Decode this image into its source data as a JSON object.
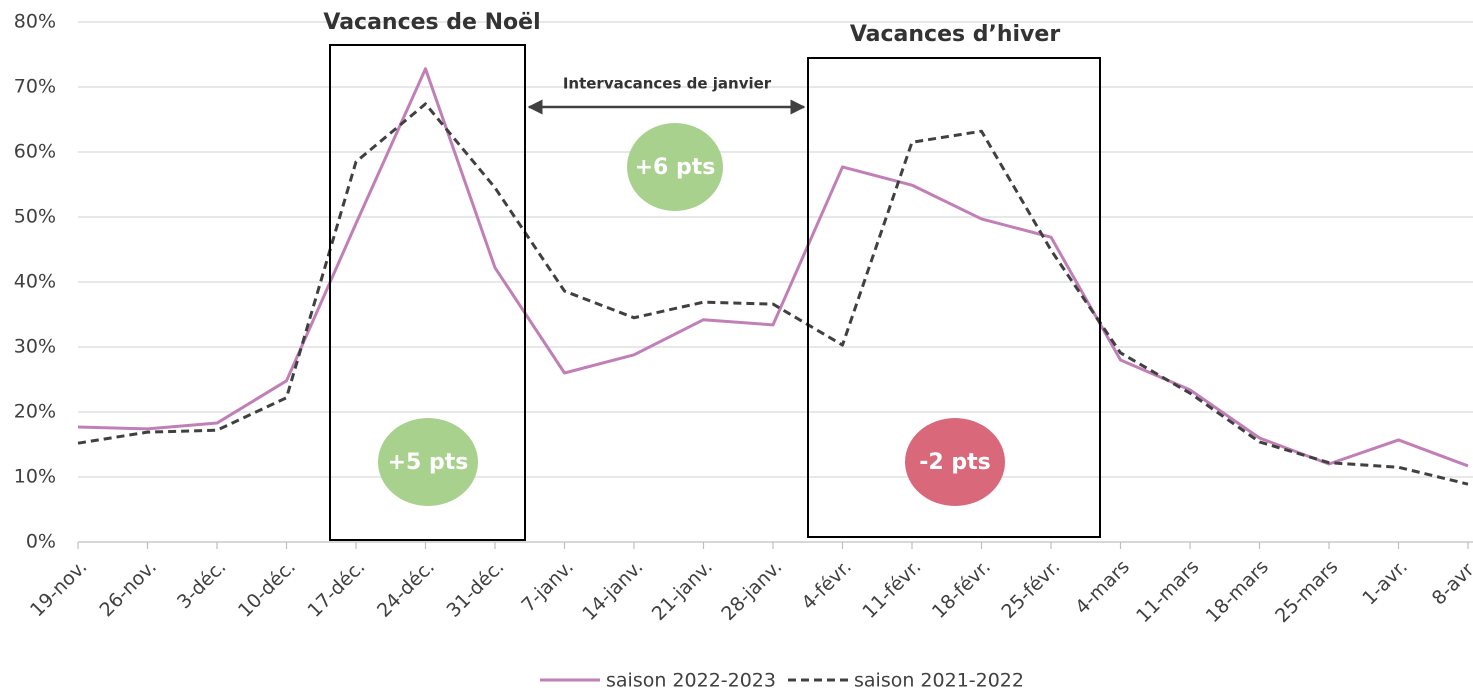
{
  "chart_data": {
    "type": "line",
    "categories": [
      "19-nov.",
      "26-nov.",
      "3-déc.",
      "10-déc.",
      "17-déc.",
      "24-déc.",
      "31-déc.",
      "7-janv.",
      "14-janv.",
      "21-janv.",
      "28-janv.",
      "4-févr.",
      "11-févr.",
      "18-févr.",
      "25-févr.",
      "4-mars",
      "11-mars",
      "18-mars",
      "25-mars",
      "1-avr.",
      "8-avr."
    ],
    "series": [
      {
        "name": "saison 2022-2023",
        "color": "#c17fb7",
        "dashed": false,
        "values": [
          17.7,
          17.4,
          18.3,
          24.8,
          49,
          72.8,
          42.2,
          26.0,
          28.8,
          34.2,
          33.4,
          57.7,
          54.9,
          49.7,
          46.9,
          28.0,
          23.4,
          16.0,
          12.0,
          15.7,
          11.7
        ]
      },
      {
        "name": "saison 2021-2022",
        "color": "#404040",
        "dashed": true,
        "values": [
          15.2,
          16.9,
          17.2,
          22.2,
          58.5,
          67.4,
          54.5,
          38.6,
          34.5,
          36.9,
          36.6,
          30.3,
          61.5,
          63.2,
          44.9,
          29.1,
          22.9,
          15.4,
          12.2,
          11.5,
          8.9
        ]
      }
    ],
    "ylim": [
      0,
      80
    ],
    "yticks": [
      {
        "value": 0,
        "label": "0%"
      },
      {
        "value": 10,
        "label": "10%"
      },
      {
        "value": 20,
        "label": "20%"
      },
      {
        "value": 30,
        "label": "30%"
      },
      {
        "value": 40,
        "label": "40%"
      },
      {
        "value": 50,
        "label": "50%"
      },
      {
        "value": 60,
        "label": "60%"
      },
      {
        "value": 70,
        "label": "70%"
      },
      {
        "value": 80,
        "label": "80%"
      }
    ],
    "grid": true,
    "legend": "bottom",
    "annotations": [
      "Vacances de Noël",
      "Vacances d’hiver",
      "Intervacances de janvier",
      "+6 pts",
      "+5 pts",
      "-2 pts"
    ]
  }
}
